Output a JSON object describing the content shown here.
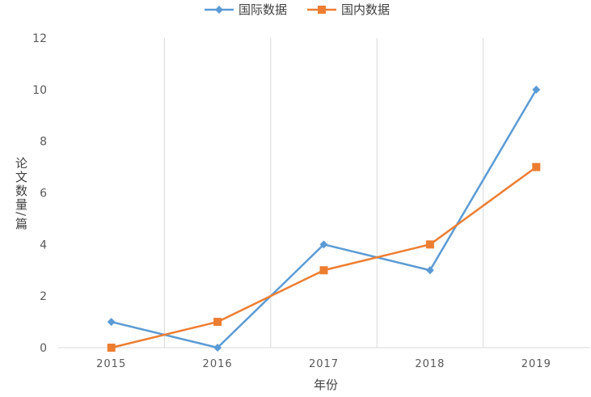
{
  "chart_data": {
    "type": "line",
    "categories": [
      "2015",
      "2016",
      "2017",
      "2018",
      "2019"
    ],
    "series": [
      {
        "name": "国际数据",
        "values": [
          1,
          0,
          4,
          3,
          10
        ],
        "color": "#5B9BD5",
        "marker": "diamond"
      },
      {
        "name": "国内数据",
        "values": [
          0,
          1,
          3,
          4,
          7
        ],
        "color": "#ED7D31",
        "marker": "square"
      }
    ],
    "xlabel": "年份",
    "ylabel": "论文数量/篇",
    "ylim": [
      0,
      12
    ],
    "yticks": [
      "0",
      "2",
      "4",
      "6",
      "8",
      "10",
      "12"
    ],
    "grid": "vertical",
    "legend_position": "top-center"
  }
}
